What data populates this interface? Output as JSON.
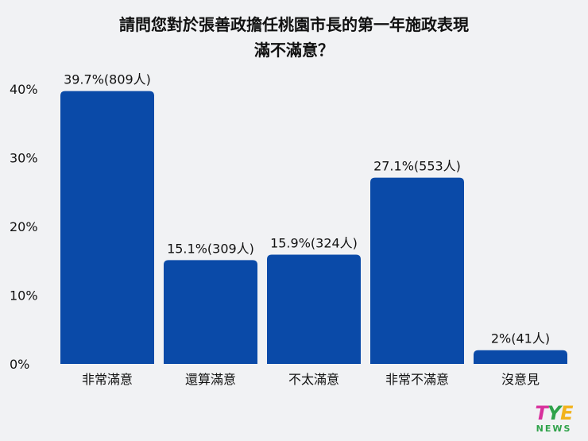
{
  "chart_data": {
    "type": "bar",
    "title": [
      "請問您對於張善政擔任桃園市長的第一年施政表現",
      "滿不滿意？"
    ],
    "categories": [
      "非常滿意",
      "還算滿意",
      "不太滿意",
      "非常不滿意",
      "沒意見"
    ],
    "values": [
      39.7,
      15.1,
      15.9,
      27.1,
      2
    ],
    "data_labels": [
      "39.7%(809人)",
      "15.1%(309人)",
      "15.9%(324人)",
      "27.1%(553人)",
      "2%(41人)"
    ],
    "y_ticks": [
      "0%",
      "10%",
      "20%",
      "30%",
      "40%"
    ],
    "ylim": [
      0,
      40
    ],
    "grid": false,
    "bar_color": "#0a4aa8"
  },
  "logo": {
    "part1": "T",
    "part2": "Y",
    "part3": "E",
    "sub": "NEWS"
  }
}
